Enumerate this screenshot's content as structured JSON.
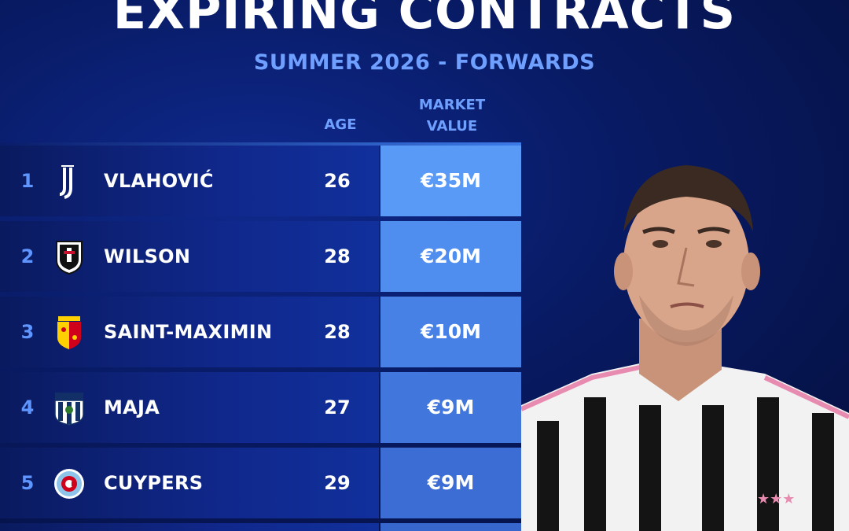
{
  "header": {
    "title": "EXPIRING CONTRACTS",
    "subtitle": "SUMMER 2026 - FORWARDS"
  },
  "columns": {
    "age": "AGE",
    "market_value_line1": "MARKET",
    "market_value_line2": "VALUE"
  },
  "colors": {
    "accent_blue": "#5f95ff",
    "bg_navy": "#081a63"
  },
  "rows": [
    {
      "rank": "1",
      "crest": "juventus-crest-icon",
      "name": "VLAHOVIĆ",
      "age": "26",
      "market_value": "€35M",
      "mv_color": "#5a9af7"
    },
    {
      "rank": "2",
      "crest": "fulham-crest-icon",
      "name": "WILSON",
      "age": "28",
      "market_value": "€20M",
      "mv_color": "#4f8def"
    },
    {
      "rank": "3",
      "crest": "rc-lens-crest-icon",
      "name": "SAINT-MAXIMIN",
      "age": "28",
      "market_value": "€10M",
      "mv_color": "#4781e6"
    },
    {
      "rank": "4",
      "crest": "west-brom-crest-icon",
      "name": "MAJA",
      "age": "27",
      "market_value": "€9M",
      "mv_color": "#4176dd"
    },
    {
      "rank": "5",
      "crest": "chicago-fire-crest-icon",
      "name": "CUYPERS",
      "age": "29",
      "market_value": "€9M",
      "mv_color": "#3c6dd5"
    }
  ]
}
